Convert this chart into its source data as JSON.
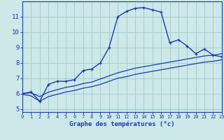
{
  "xlabel": "Graphe des températures (°c)",
  "bg_color": "#cce8e8",
  "grid_color": "#aacccc",
  "line_color": "#1a3ab0",
  "hours": [
    0,
    1,
    2,
    3,
    4,
    5,
    6,
    7,
    8,
    9,
    10,
    11,
    12,
    13,
    14,
    15,
    16,
    17,
    18,
    19,
    20,
    21,
    22,
    23
  ],
  "temp_main": [
    6.0,
    6.1,
    5.5,
    6.6,
    6.8,
    6.8,
    6.9,
    7.5,
    7.6,
    8.0,
    9.0,
    11.0,
    11.35,
    11.55,
    11.6,
    11.45,
    11.3,
    9.3,
    9.5,
    9.1,
    8.6,
    8.9,
    8.5,
    8.4
  ],
  "temp_line2": [
    6.0,
    6.05,
    5.8,
    6.1,
    6.25,
    6.4,
    6.5,
    6.65,
    6.75,
    6.95,
    7.15,
    7.35,
    7.5,
    7.65,
    7.75,
    7.85,
    7.95,
    8.05,
    8.15,
    8.25,
    8.35,
    8.45,
    8.5,
    8.6
  ],
  "temp_line3": [
    5.95,
    5.85,
    5.5,
    5.8,
    5.95,
    6.1,
    6.2,
    6.35,
    6.45,
    6.6,
    6.8,
    7.0,
    7.1,
    7.25,
    7.35,
    7.45,
    7.55,
    7.65,
    7.75,
    7.85,
    7.95,
    8.05,
    8.1,
    8.2
  ],
  "ylim": [
    4.8,
    12.0
  ],
  "yticks": [
    5,
    6,
    7,
    8,
    9,
    10,
    11
  ],
  "xlim": [
    0,
    23
  ]
}
